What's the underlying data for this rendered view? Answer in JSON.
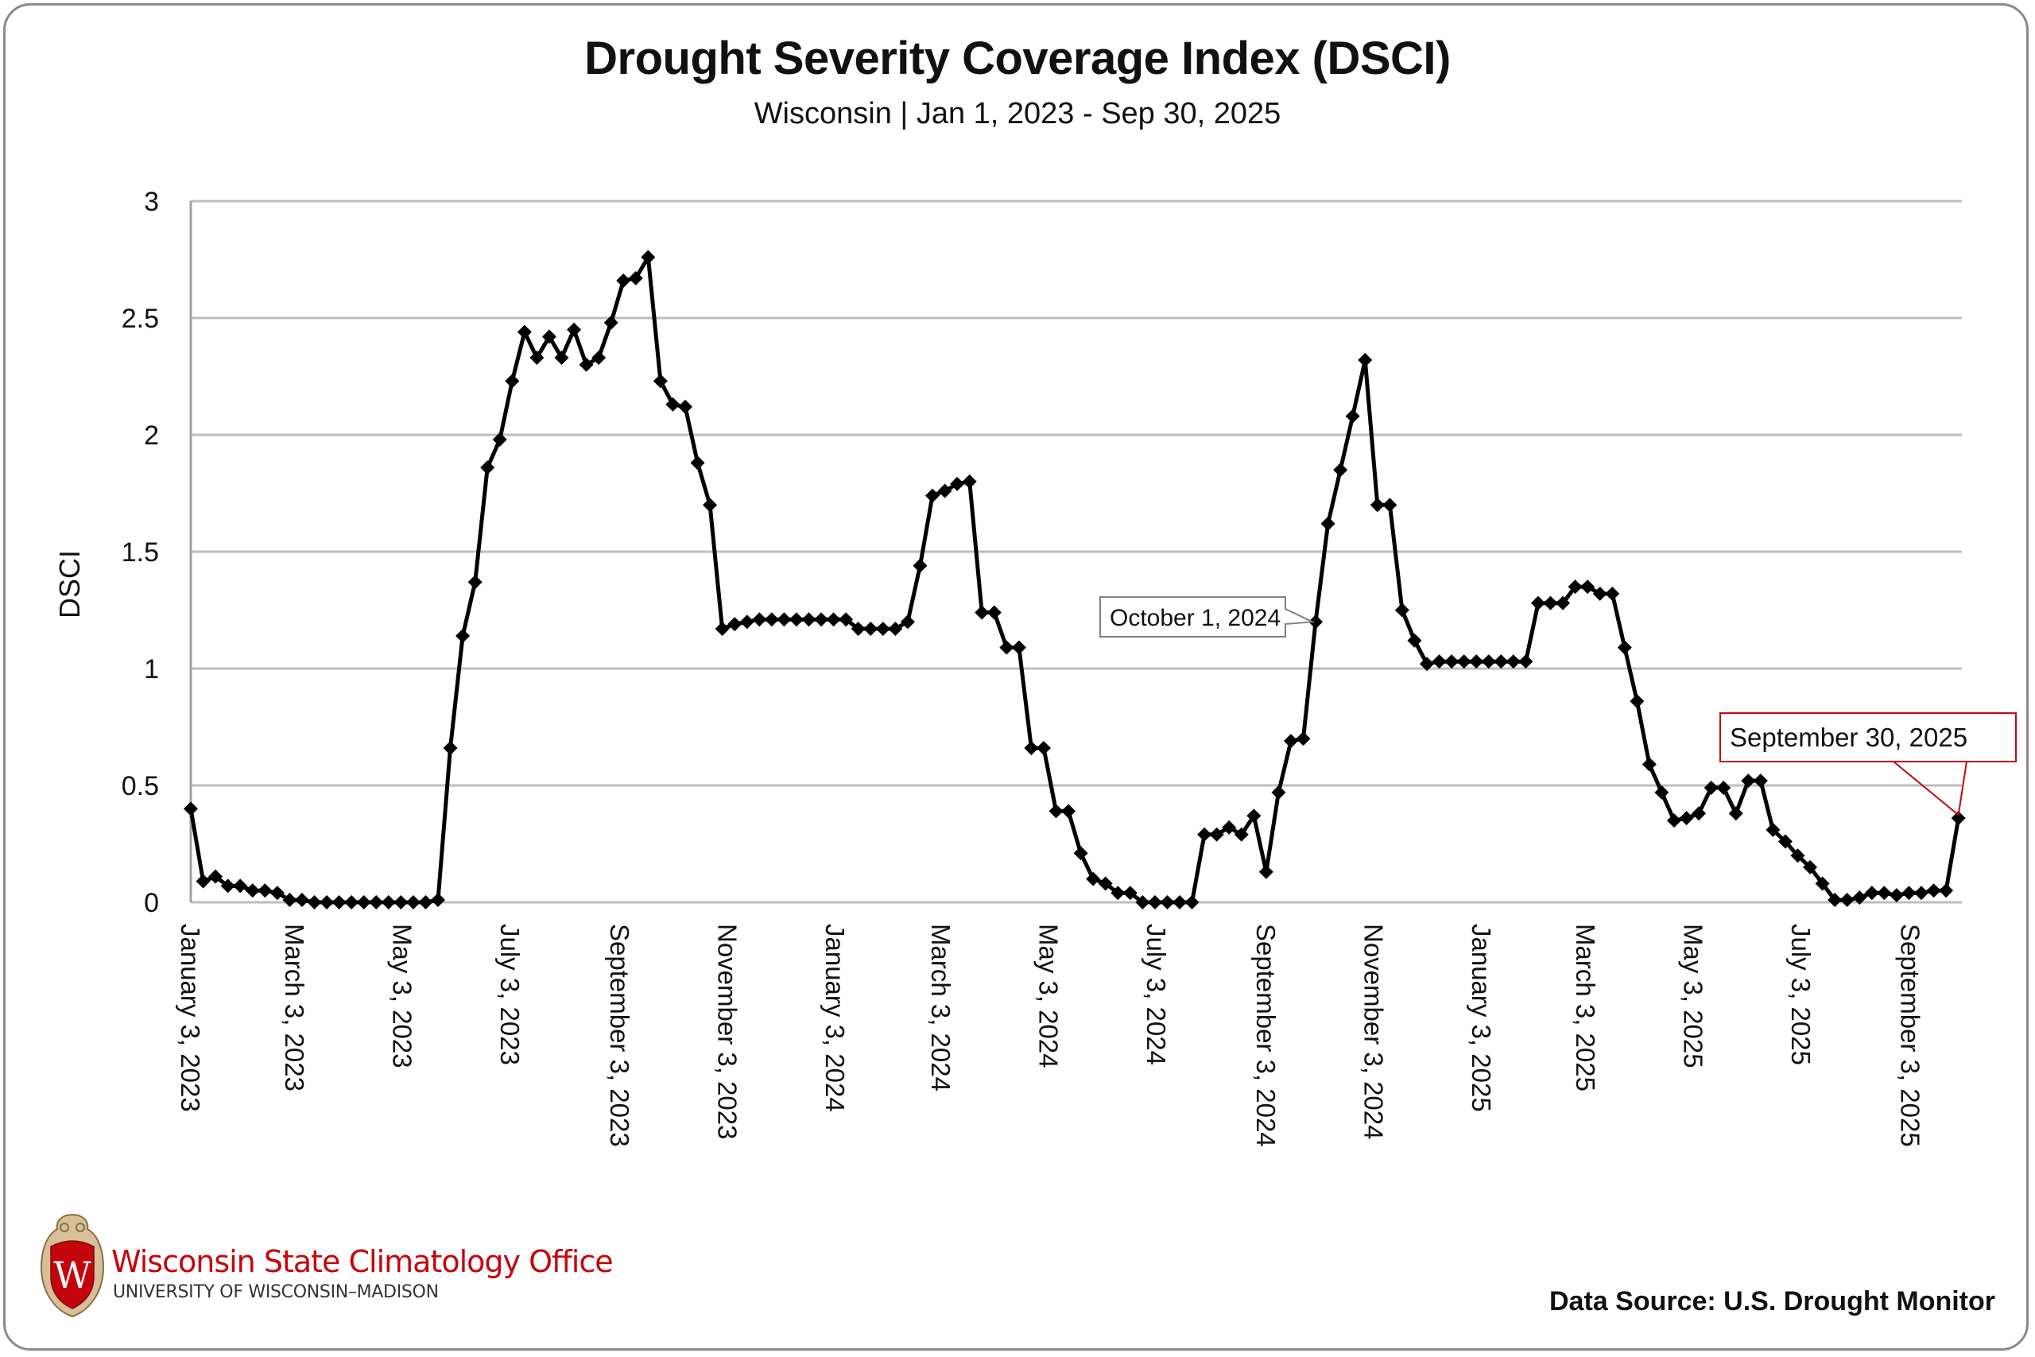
{
  "header": {
    "title": "Drought Severity Coverage Index (DSCI)",
    "subtitle": "Wisconsin | Jan 1, 2023 - Sep 30, 2025"
  },
  "footer": {
    "org_name": "Wisconsin State Climatology Office",
    "org_sub": "UNIVERSITY OF WISCONSIN–MADISON",
    "logo_letter": "W",
    "source": "Data Source: U.S. Drought Monitor"
  },
  "colors": {
    "line": "#000000",
    "grid": "#bdbdbd",
    "brand_red": "#c5050c",
    "annotation_gray": "#808080"
  },
  "chart_data": {
    "type": "line",
    "title": "Drought Severity Coverage Index (DSCI)",
    "subtitle": "Wisconsin | Jan 1, 2023 - Sep 30, 2025",
    "xlabel": "",
    "ylabel": "DSCI",
    "ylim": [
      0,
      3
    ],
    "yticks": [
      "0",
      "0.5",
      "1",
      "1.5",
      "2",
      "2.5",
      "3"
    ],
    "ytick_values": [
      0,
      0.5,
      1,
      1.5,
      2,
      2.5,
      3
    ],
    "grid": true,
    "legend": "none",
    "marker": "diamond",
    "x_start": "January 3, 2023",
    "x_interval_days": 7,
    "x_range_days": [
      0,
      1001
    ],
    "xticks": [
      {
        "label": "January 3, 2023",
        "day": 0
      },
      {
        "label": "March 3, 2023",
        "day": 59
      },
      {
        "label": "May 3, 2023",
        "day": 120
      },
      {
        "label": "July 3, 2023",
        "day": 181
      },
      {
        "label": "September 3, 2023",
        "day": 243
      },
      {
        "label": "November 3, 2023",
        "day": 304
      },
      {
        "label": "January 3, 2024",
        "day": 365
      },
      {
        "label": "March 3, 2024",
        "day": 425
      },
      {
        "label": "May 3, 2024",
        "day": 486
      },
      {
        "label": "July 3, 2024",
        "day": 547
      },
      {
        "label": "September 3, 2024",
        "day": 609
      },
      {
        "label": "November 3, 2024",
        "day": 670
      },
      {
        "label": "January 3, 2025",
        "day": 731
      },
      {
        "label": "March 3, 2025",
        "day": 790
      },
      {
        "label": "May 3, 2025",
        "day": 851
      },
      {
        "label": "July 3, 2025",
        "day": 912
      },
      {
        "label": "September 3, 2025",
        "day": 974
      }
    ],
    "series": [
      {
        "name": "DSCI",
        "values": [
          0.4,
          0.09,
          0.11,
          0.07,
          0.07,
          0.05,
          0.05,
          0.04,
          0.01,
          0.01,
          0.0,
          0.0,
          0.0,
          0.0,
          0.0,
          0.0,
          0.0,
          0.0,
          0.0,
          0.0,
          0.01,
          0.66,
          1.14,
          1.37,
          1.86,
          1.98,
          2.23,
          2.44,
          2.33,
          2.42,
          2.33,
          2.45,
          2.3,
          2.33,
          2.48,
          2.66,
          2.67,
          2.76,
          2.23,
          2.13,
          2.12,
          1.88,
          1.7,
          1.17,
          1.19,
          1.2,
          1.21,
          1.21,
          1.21,
          1.21,
          1.21,
          1.21,
          1.21,
          1.21,
          1.17,
          1.17,
          1.17,
          1.17,
          1.2,
          1.44,
          1.74,
          1.76,
          1.79,
          1.8,
          1.24,
          1.24,
          1.09,
          1.09,
          0.66,
          0.66,
          0.39,
          0.39,
          0.21,
          0.1,
          0.08,
          0.04,
          0.04,
          0.0,
          0.0,
          0.0,
          0.0,
          0.0,
          0.29,
          0.29,
          0.32,
          0.29,
          0.37,
          0.13,
          0.47,
          0.69,
          0.7,
          1.2,
          1.62,
          1.85,
          2.08,
          2.32,
          1.7,
          1.7,
          1.25,
          1.12,
          1.02,
          1.03,
          1.03,
          1.03,
          1.03,
          1.03,
          1.03,
          1.03,
          1.03,
          1.28,
          1.28,
          1.28,
          1.35,
          1.35,
          1.32,
          1.32,
          1.09,
          0.86,
          0.59,
          0.47,
          0.35,
          0.36,
          0.38,
          0.49,
          0.49,
          0.38,
          0.52,
          0.52,
          0.31,
          0.26,
          0.2,
          0.15,
          0.08,
          0.01,
          0.01,
          0.02,
          0.04,
          0.04,
          0.03,
          0.04,
          0.04,
          0.05,
          0.05,
          0.36
        ]
      }
    ],
    "annotations": [
      {
        "label": "October 1, 2024",
        "index": 91,
        "value": 1.2,
        "style": "gray"
      },
      {
        "label": "September 30, 2025",
        "index": 143,
        "value": 0.36,
        "style": "red"
      }
    ]
  }
}
